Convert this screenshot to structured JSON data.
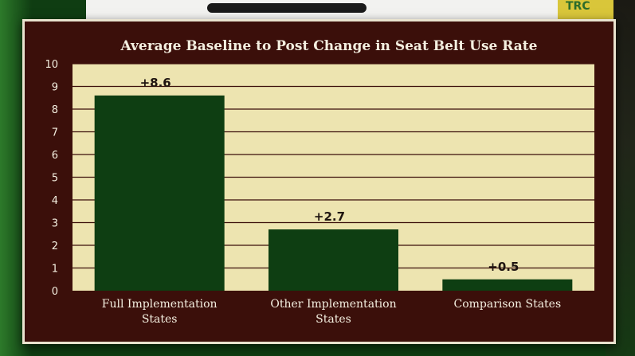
{
  "background": {
    "badge_text": "TRC"
  },
  "colors": {
    "frame": "#3b0f0a",
    "frame_border": "#e9e3cf",
    "plot_bg": "#ede4b0",
    "gridline": "#3b0f0a",
    "bar": "#0e3e12",
    "text_light": "#f4efe0",
    "text_dark": "#1e1410"
  },
  "chart_data": {
    "type": "bar",
    "title": "Average Baseline to Post Change in Seat Belt Use Rate",
    "categories": [
      [
        "Full Implementation",
        "States"
      ],
      [
        "Other Implementation",
        "States"
      ],
      [
        "Comparison States"
      ]
    ],
    "values": [
      8.6,
      2.7,
      0.5
    ],
    "data_labels": [
      "+8.6",
      "+2.7",
      "+0.5"
    ],
    "y_ticks": [
      0,
      1,
      2,
      3,
      4,
      5,
      6,
      7,
      8,
      9,
      10
    ],
    "ylim": [
      0,
      10
    ],
    "grid": true,
    "xlabel": "",
    "ylabel": ""
  }
}
